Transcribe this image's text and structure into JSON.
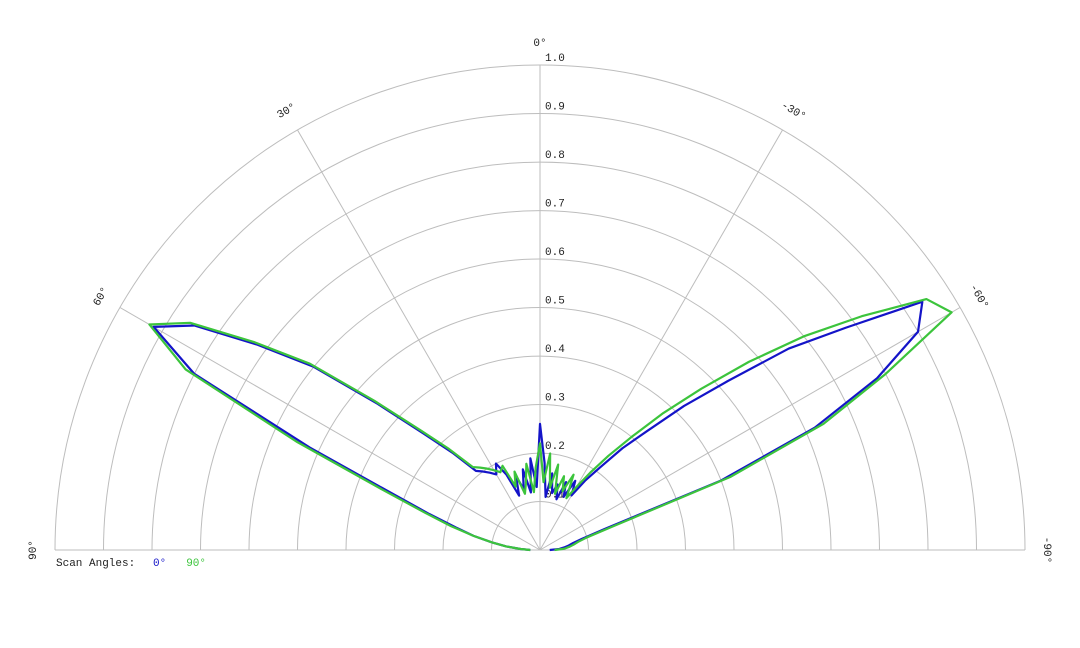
{
  "chart_data": {
    "type": "polar-line",
    "legend_title": "Scan Angles:",
    "x": [
      -90,
      -87,
      -84,
      -81,
      -78,
      -75,
      -72,
      -69,
      -66,
      -63,
      -60,
      -57,
      -54,
      -51,
      -48,
      -45,
      -42,
      -39,
      -36,
      -33,
      -30,
      -27,
      -24,
      -21,
      -18,
      -15,
      -12,
      -9,
      -6,
      -3,
      0,
      3,
      6,
      9,
      12,
      15,
      18,
      21,
      24,
      27,
      30,
      33,
      36,
      39,
      42,
      45,
      48,
      51,
      54,
      57,
      60,
      63,
      66,
      69,
      72,
      75,
      78,
      81,
      84,
      87,
      90
    ],
    "series": [
      {
        "name": "0°",
        "color": "#1414c8",
        "values": [
          0.02,
          0.04,
          0.05,
          0.06,
          0.07,
          0.09,
          0.14,
          0.4,
          0.62,
          0.78,
          0.9,
          0.94,
          0.78,
          0.66,
          0.52,
          0.42,
          0.33,
          0.27,
          0.21,
          0.17,
          0.13,
          0.16,
          0.12,
          0.15,
          0.11,
          0.14,
          0.12,
          0.16,
          0.11,
          0.18,
          0.26,
          0.13,
          0.19,
          0.12,
          0.17,
          0.13,
          0.16,
          0.12,
          0.17,
          0.2,
          0.18,
          0.19,
          0.2,
          0.21,
          0.27,
          0.34,
          0.45,
          0.6,
          0.72,
          0.85,
          0.92,
          0.8,
          0.52,
          0.33,
          0.24,
          0.18,
          0.14,
          0.1,
          0.07,
          0.04,
          0.02
        ]
      },
      {
        "name": "90°",
        "color": "#3cc43c",
        "values": [
          0.03,
          0.05,
          0.06,
          0.07,
          0.08,
          0.1,
          0.16,
          0.42,
          0.64,
          0.8,
          0.98,
          0.95,
          0.82,
          0.7,
          0.58,
          0.47,
          0.38,
          0.3,
          0.24,
          0.19,
          0.15,
          0.12,
          0.17,
          0.13,
          0.16,
          0.12,
          0.18,
          0.13,
          0.2,
          0.14,
          0.22,
          0.17,
          0.12,
          0.18,
          0.14,
          0.12,
          0.17,
          0.14,
          0.19,
          0.18,
          0.19,
          0.2,
          0.21,
          0.22,
          0.28,
          0.35,
          0.46,
          0.61,
          0.73,
          0.86,
          0.93,
          0.82,
          0.55,
          0.35,
          0.25,
          0.19,
          0.14,
          0.1,
          0.07,
          0.04,
          0.02
        ]
      }
    ],
    "xlim": [
      -90,
      90
    ],
    "xticks": [
      {
        "value": -90,
        "label": "-90°"
      },
      {
        "value": -60,
        "label": "-60°"
      },
      {
        "value": -30,
        "label": "-30°"
      },
      {
        "value": 0,
        "label": "0°"
      },
      {
        "value": 30,
        "label": "30°"
      },
      {
        "value": 60,
        "label": "60°"
      },
      {
        "value": 90,
        "label": "90°"
      }
    ],
    "ylim": [
      0,
      1
    ],
    "yticks": [
      0.1,
      0.2,
      0.3,
      0.4,
      0.5,
      0.6,
      0.7,
      0.8,
      0.9,
      {
        "value": 1,
        "label": "1.0"
      }
    ],
    "grid": true
  }
}
